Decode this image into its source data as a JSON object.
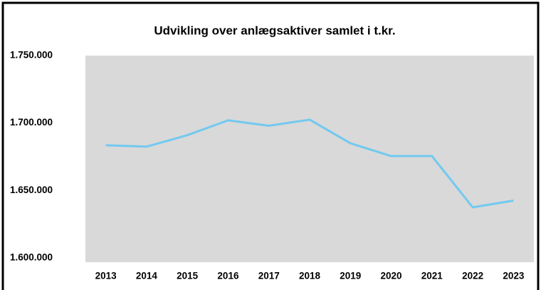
{
  "chart_data": {
    "type": "line",
    "title": "Udvikling over anlægsaktiver samlet i t.kr.",
    "categories": [
      "2013",
      "2014",
      "2015",
      "2016",
      "2017",
      "2018",
      "2019",
      "2020",
      "2021",
      "2022",
      "2023"
    ],
    "series": [
      {
        "name": "Anlægsaktiver",
        "color": "#72c9ef",
        "values": [
          1683500,
          1682500,
          1691000,
          1702000,
          1698000,
          1702500,
          1685000,
          1675500,
          1675500,
          1637500,
          1642500
        ]
      }
    ],
    "ylim": [
      1600000,
      1750000
    ],
    "yticks": [
      {
        "value": 1600000,
        "label": "1.600.000"
      },
      {
        "value": 1650000,
        "label": "1.650.000"
      },
      {
        "value": 1700000,
        "label": "1.700.000"
      },
      {
        "value": 1750000,
        "label": "1.750.000"
      }
    ],
    "grid": false,
    "legend": false
  }
}
